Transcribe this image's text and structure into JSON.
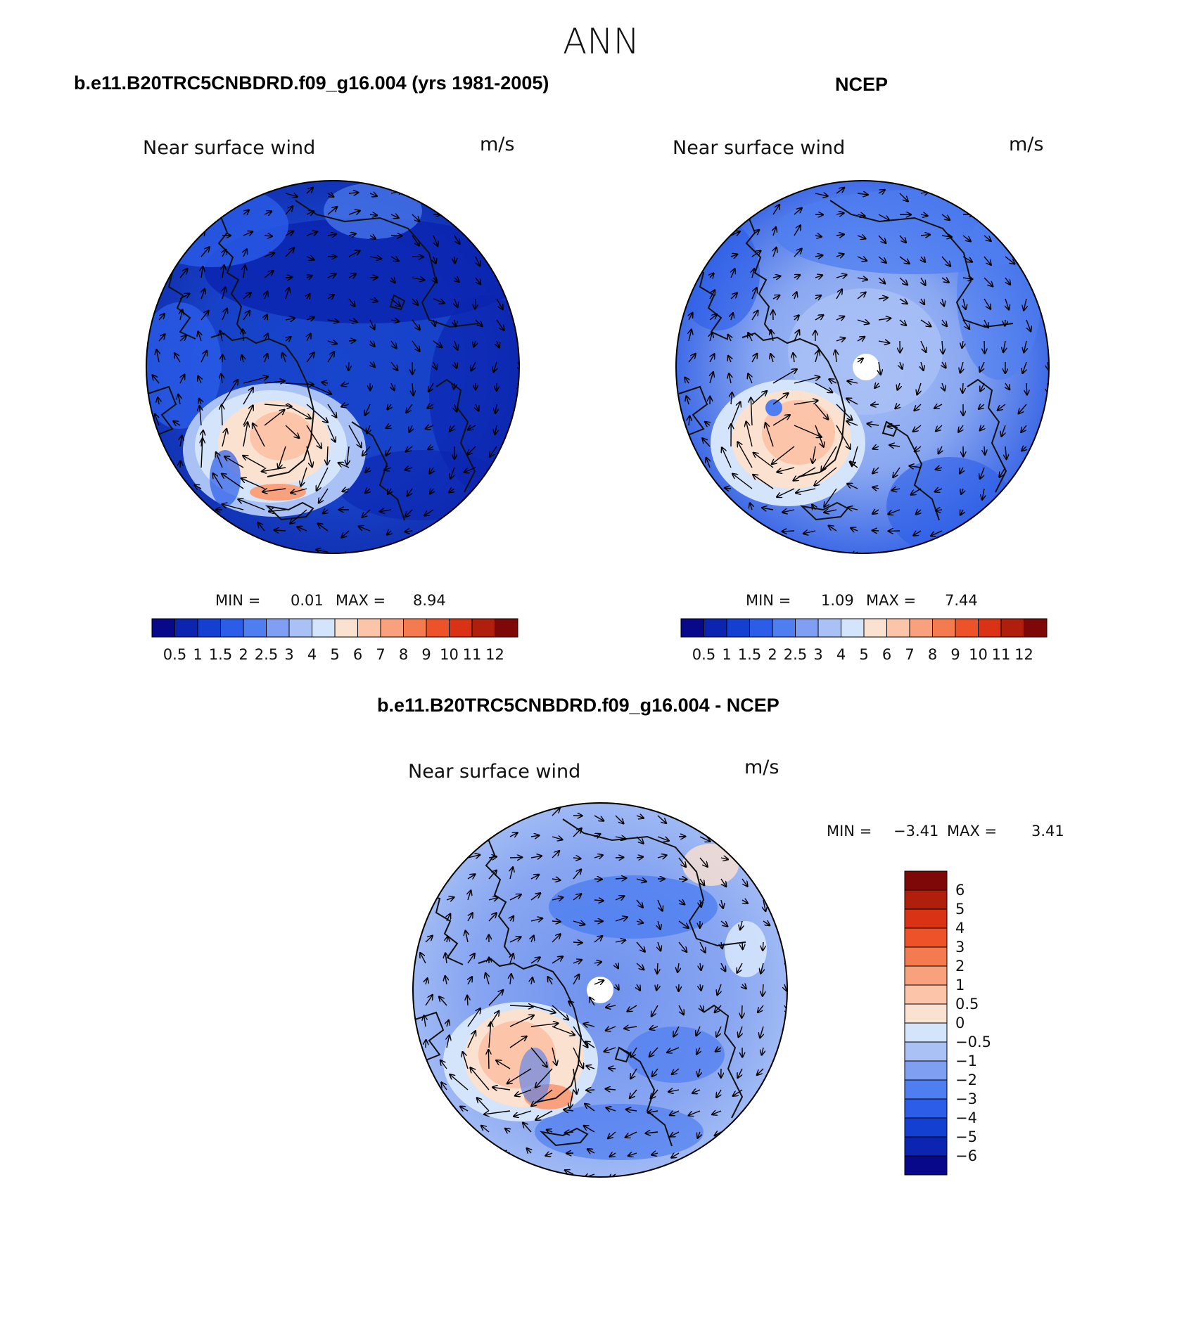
{
  "figure_title": "ANN",
  "panels": {
    "model": {
      "title": "b.e11.B20TRC5CNBDRD.f09_g16.004 (yrs 1981-2005)",
      "variable": "Near surface wind",
      "units": "m/s",
      "min_label": "MIN =",
      "min_value": "0.01",
      "max_label": "MAX =",
      "max_value": "8.94"
    },
    "obs": {
      "title": "NCEP",
      "variable": "Near surface wind",
      "units": "m/s",
      "min_label": "MIN =",
      "min_value": "1.09",
      "max_label": "MAX =",
      "max_value": "7.44"
    },
    "diff": {
      "title": "b.e11.B20TRC5CNBDRD.f09_g16.004 - NCEP",
      "variable": "Near surface wind",
      "units": "m/s",
      "min_label": "MIN =",
      "min_value": "−3.41",
      "max_label": "MAX =",
      "max_value": "3.41"
    }
  },
  "colorbars": {
    "abs": {
      "ticks": [
        "0.5",
        "1",
        "1.5",
        "2",
        "2.5",
        "3",
        "4",
        "5",
        "6",
        "7",
        "8",
        "9",
        "10",
        "11",
        "12"
      ],
      "colors": [
        "#08088a",
        "#0b25b0",
        "#1440d2",
        "#2b5de8",
        "#4e7ef0",
        "#7f9ff2",
        "#a9c1f5",
        "#d4e4fb",
        "#fbe1cf",
        "#fcc4a8",
        "#f9a07c",
        "#f47a4f",
        "#ee5228",
        "#d93214",
        "#b01e0c",
        "#7e0808"
      ]
    },
    "diff": {
      "ticks": [
        "6",
        "5",
        "4",
        "3",
        "2",
        "1",
        "0.5",
        "0",
        "−0.5",
        "−1",
        "−2",
        "−3",
        "−4",
        "−5",
        "−6"
      ],
      "colors": [
        "#7e0808",
        "#b01e0c",
        "#d93214",
        "#ee5228",
        "#f47a4f",
        "#f9a07c",
        "#fcc4a8",
        "#fbe1cf",
        "#d4e4fb",
        "#a9c1f5",
        "#7f9ff2",
        "#4e7ef0",
        "#2b5de8",
        "#1440d2",
        "#0b25b0",
        "#08088a"
      ]
    }
  }
}
